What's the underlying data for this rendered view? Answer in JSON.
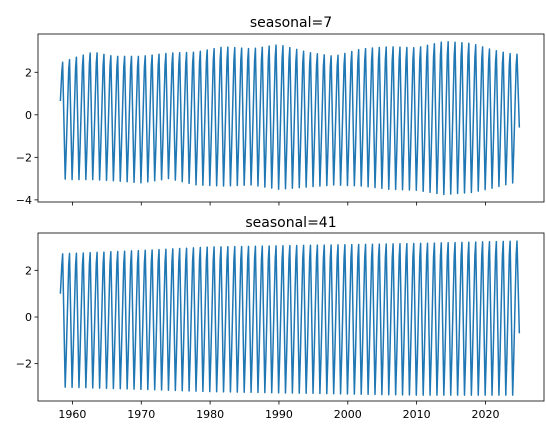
{
  "chart_data": [
    {
      "type": "line",
      "title": "seasonal=7",
      "xlabel": "",
      "ylabel": "",
      "xlim": [
        1955,
        2028.5
      ],
      "ylim": [
        -4.1,
        3.8
      ],
      "xticks": [
        1960,
        1970,
        1980,
        1990,
        2000,
        2010,
        2020
      ],
      "xtick_labels_visible": false,
      "yticks": [
        -4,
        -2,
        0,
        2
      ],
      "yticks_labels": [
        "−4",
        "−2",
        "0",
        "2"
      ],
      "grid": false,
      "series": [
        {
          "color": "#1f77b4",
          "x_start": 1958.25,
          "x_end": 2024.92,
          "cycles_per_year": 1,
          "first_value": 0.65,
          "last_value": -0.6,
          "envelope_years": [
            1958,
            1960,
            1963,
            1966,
            1970,
            1974,
            1978,
            1982,
            1986,
            1990,
            1994,
            1998,
            2002,
            2006,
            2010,
            2014,
            2018,
            2021,
            2024
          ],
          "envelope_max": [
            2.4,
            2.65,
            2.95,
            2.75,
            2.75,
            2.9,
            2.95,
            3.2,
            3.1,
            3.3,
            2.95,
            2.75,
            3.1,
            3.2,
            3.15,
            3.45,
            3.35,
            3.05,
            2.85
          ],
          "envelope_min": [
            -3.0,
            -3.05,
            -3.05,
            -3.1,
            -3.2,
            -3.0,
            -3.3,
            -3.35,
            -3.3,
            -3.5,
            -3.4,
            -3.3,
            -3.35,
            -3.5,
            -3.55,
            -3.75,
            -3.65,
            -3.45,
            -3.2
          ]
        }
      ]
    },
    {
      "type": "line",
      "title": "seasonal=41",
      "xlabel": "",
      "ylabel": "",
      "xlim": [
        1955,
        2028.5
      ],
      "ylim": [
        -3.6,
        3.6
      ],
      "xticks": [
        1960,
        1970,
        1980,
        1990,
        2000,
        2010,
        2020
      ],
      "xtick_labels": [
        "1960",
        "1970",
        "1980",
        "1990",
        "2000",
        "2010",
        "2020"
      ],
      "yticks": [
        -2,
        0,
        2
      ],
      "yticks_labels": [
        "−2",
        "0",
        "2"
      ],
      "grid": false,
      "series": [
        {
          "color": "#1f77b4",
          "x_start": 1958.25,
          "x_end": 2024.92,
          "cycles_per_year": 1,
          "first_value": 1.0,
          "last_value": -0.7,
          "envelope_years": [
            1958,
            1970,
            1980,
            1990,
            2000,
            2010,
            2024
          ],
          "envelope_max": [
            2.7,
            2.85,
            3.0,
            3.05,
            3.1,
            3.15,
            3.25
          ],
          "envelope_min": [
            -3.0,
            -3.1,
            -3.2,
            -3.25,
            -3.3,
            -3.35,
            -3.35
          ]
        }
      ]
    }
  ]
}
